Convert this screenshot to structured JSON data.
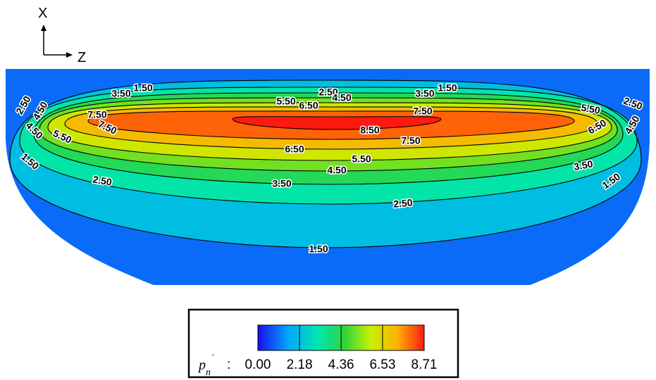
{
  "chart_data": {
    "type": "heatmap",
    "title": "",
    "axes": {
      "vertical": "X",
      "horizontal": "Z"
    },
    "field_max": 8.71,
    "contours": [
      {
        "level": 1.5,
        "labels": [
          "1.50",
          "1.50",
          "1.50",
          "1.50",
          "1.50"
        ]
      },
      {
        "level": 2.5,
        "labels": [
          "2.50",
          "2.50",
          "2.50",
          "2.50",
          "2.50"
        ]
      },
      {
        "level": 3.5,
        "labels": [
          "3.50",
          "3.50",
          "3.50",
          "3.50"
        ]
      },
      {
        "level": 4.5,
        "labels": [
          "4.50",
          "4.50",
          "4.50",
          "4.50",
          "4.50"
        ]
      },
      {
        "level": 5.5,
        "labels": [
          "5.50",
          "5.50",
          "5.50",
          "5.50"
        ]
      },
      {
        "level": 6.5,
        "labels": [
          "6.50",
          "6.50",
          "6.50"
        ]
      },
      {
        "level": 7.5,
        "labels": [
          "7.50",
          "7.50",
          "7.50",
          "7.50"
        ]
      },
      {
        "level": 8.5,
        "labels": [
          "8.50"
        ]
      }
    ],
    "colorbar": {
      "variable_base": "p",
      "variable_sub": "n",
      "variable_prime": "´",
      "separator": ":",
      "ticks": [
        "0.00",
        "2.18",
        "4.36",
        "6.53",
        "8.71"
      ],
      "range": [
        0.0,
        8.71
      ],
      "colors": [
        "#1a0cf0",
        "#00a6ff",
        "#00e6b0",
        "#2fd43c",
        "#c8f000",
        "#ffb000",
        "#ff1a10"
      ]
    }
  }
}
